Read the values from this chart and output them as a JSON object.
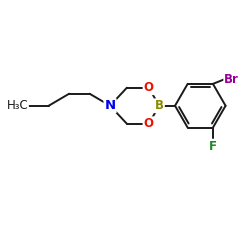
{
  "bg_color": "#ffffff",
  "line_color": "#1a1a1a",
  "atom_colors": {
    "N": "#0000ee",
    "O": "#ee1100",
    "B": "#8b8b00",
    "Br": "#990099",
    "F": "#228822"
  },
  "bond_lw": 1.4,
  "font_size": 8.5,
  "fig_size": [
    2.5,
    2.5
  ],
  "dpi": 100
}
